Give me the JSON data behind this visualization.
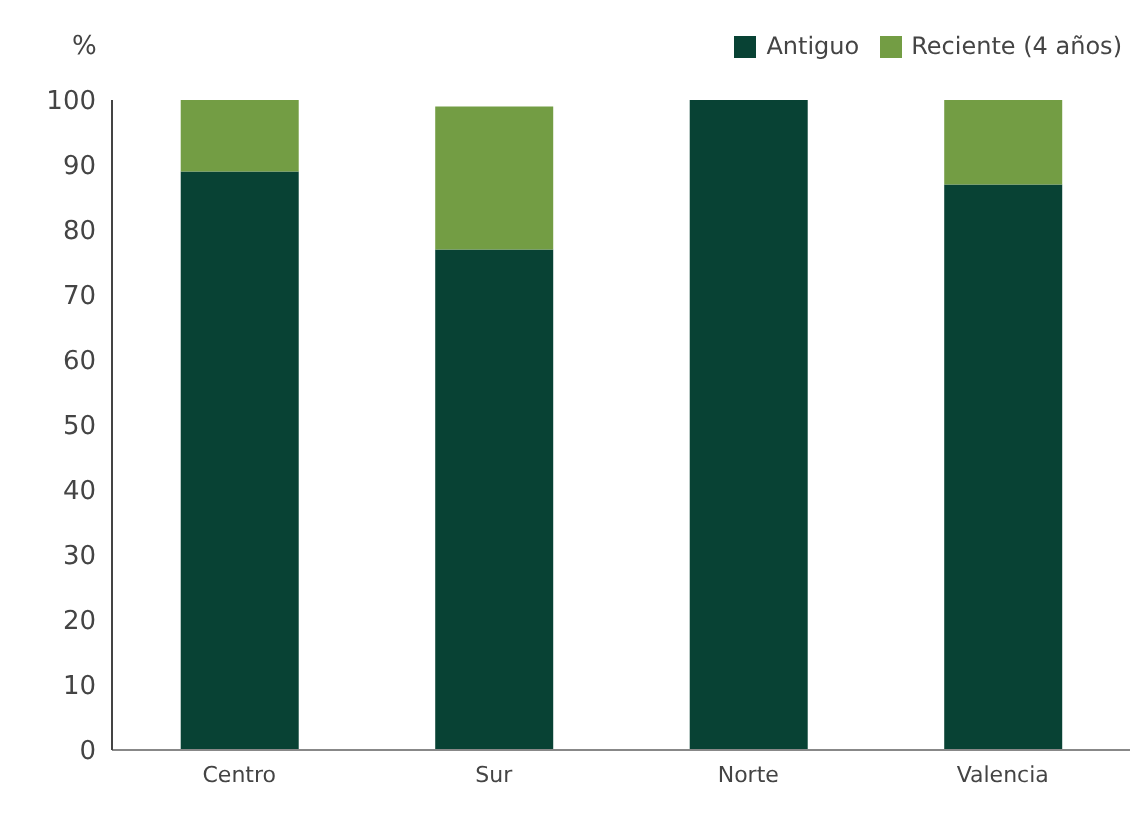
{
  "chart_data": {
    "type": "bar",
    "stacked": true,
    "ylabel": "%",
    "categories": [
      "Centro",
      "Sur",
      "Norte",
      "Valencia"
    ],
    "series": [
      {
        "name": "Antiguo",
        "color": "#084234",
        "values": [
          89,
          77,
          100,
          87
        ]
      },
      {
        "name": "Reciente (4 años)",
        "color": "#739d44",
        "values": [
          11,
          22,
          0,
          13
        ]
      }
    ],
    "ylim": [
      0,
      100
    ],
    "yticks": [
      0,
      10,
      20,
      30,
      40,
      50,
      60,
      70,
      80,
      90,
      100
    ],
    "grid": false,
    "legend": "top right"
  }
}
